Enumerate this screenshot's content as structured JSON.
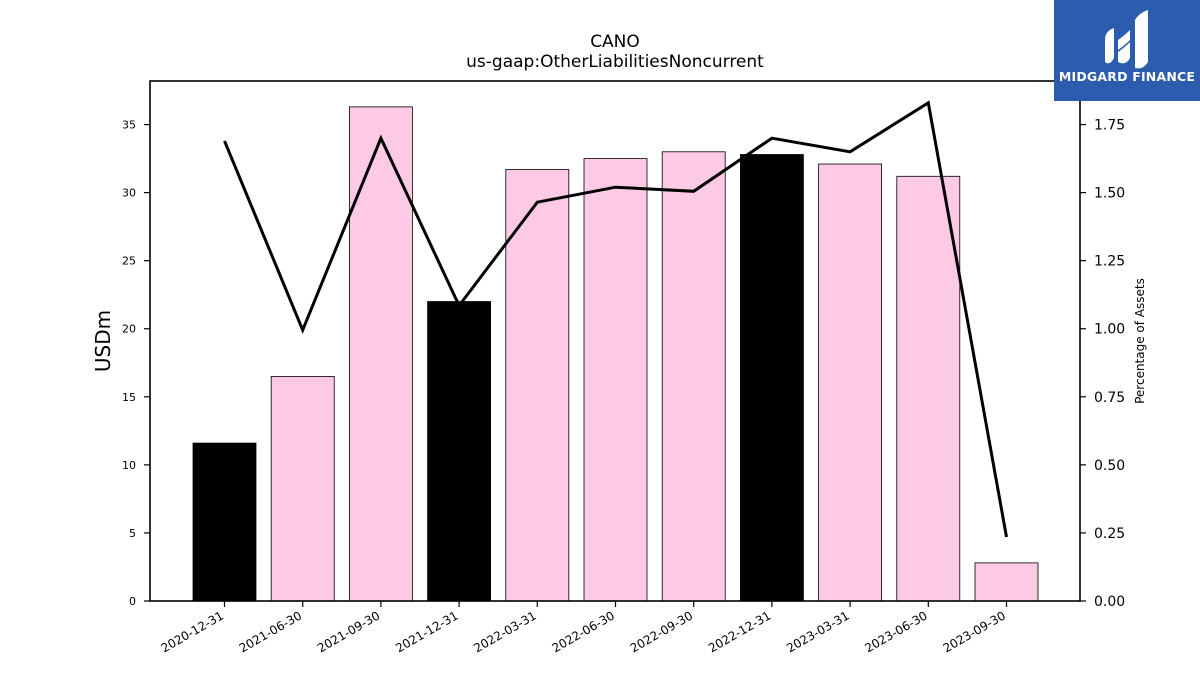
{
  "chart_data": {
    "type": "bar",
    "title": "CANO",
    "subtitle": "us-gaap:OtherLiabilitiesNoncurrent",
    "ylabel": "USDm",
    "y2label": "Percentage of Assets",
    "categories": [
      "2020-12-31",
      "2021-06-30",
      "2021-09-30",
      "2021-12-31",
      "2022-03-31",
      "2022-06-30",
      "2022-09-30",
      "2022-12-31",
      "2023-03-31",
      "2023-06-30",
      "2023-09-30"
    ],
    "series": [
      {
        "type": "bar",
        "values": [
          11.6,
          16.5,
          36.3,
          22.0,
          31.7,
          32.5,
          33.0,
          32.8,
          32.1,
          31.2,
          2.8
        ],
        "colors": [
          "#000000",
          "#fccae4",
          "#fccae4",
          "#000000",
          "#fccae4",
          "#fccae4",
          "#fccae4",
          "#000000",
          "#fccae4",
          "#fccae4",
          "#fccae4"
        ]
      },
      {
        "type": "line",
        "axis": "right",
        "values": [
          1.69,
          0.995,
          1.7,
          1.085,
          1.465,
          1.52,
          1.505,
          1.7,
          1.65,
          1.83,
          0.235
        ],
        "color": "#000000"
      }
    ],
    "ylim": [
      0,
      38.2
    ],
    "y2lim": [
      0,
      1.91
    ],
    "yticks": [
      0,
      5,
      10,
      15,
      20,
      25,
      30,
      35
    ],
    "y2ticks": [
      "0.00",
      "0.25",
      "0.50",
      "0.75",
      "1.00",
      "1.25",
      "1.50",
      "1.75"
    ],
    "grid": false,
    "legend": "none"
  },
  "logo": {
    "text": "MIDGARD FINANCE",
    "icon": "midgard-logo-icon",
    "background": "#2b5cad"
  }
}
